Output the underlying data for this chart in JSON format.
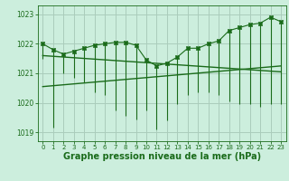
{
  "title": "Graphe pression niveau de la mer (hPa)",
  "xlabel": "Graphe pression niveau de la mer (hPa)",
  "background_color": "#cceedd",
  "grid_color": "#aaccbb",
  "line_color": "#1a6b1a",
  "ylim": [
    1018.7,
    1023.3
  ],
  "xlim": [
    -0.5,
    23.5
  ],
  "yticks": [
    1019,
    1020,
    1021,
    1022,
    1023
  ],
  "xticks": [
    0,
    1,
    2,
    3,
    4,
    5,
    6,
    7,
    8,
    9,
    10,
    11,
    12,
    13,
    14,
    15,
    16,
    17,
    18,
    19,
    20,
    21,
    22,
    23
  ],
  "hours": [
    0,
    1,
    2,
    3,
    4,
    5,
    6,
    7,
    8,
    9,
    10,
    11,
    12,
    13,
    14,
    15,
    16,
    17,
    18,
    19,
    20,
    21,
    22,
    23
  ],
  "high_values": [
    1022.0,
    1021.8,
    1021.65,
    1021.75,
    1021.85,
    1021.95,
    1022.0,
    1022.05,
    1022.05,
    1021.95,
    1021.45,
    1021.25,
    1021.35,
    1021.55,
    1021.85,
    1021.85,
    1022.0,
    1022.1,
    1022.45,
    1022.55,
    1022.65,
    1022.7,
    1022.9,
    1022.75
  ],
  "low_values": [
    1021.5,
    1019.15,
    1021.0,
    1020.85,
    1020.7,
    1020.35,
    1020.25,
    1019.75,
    1019.55,
    1019.45,
    1019.75,
    1019.1,
    1019.4,
    1019.95,
    1020.25,
    1020.35,
    1020.35,
    1020.25,
    1020.05,
    1019.95,
    1019.95,
    1019.85,
    1019.95,
    1019.95
  ],
  "trend_line1_x": [
    0,
    23
  ],
  "trend_line1_y": [
    1021.6,
    1021.05
  ],
  "trend_line2_x": [
    0,
    23
  ],
  "trend_line2_y": [
    1020.55,
    1021.25
  ],
  "fontsize_title": 7,
  "fontsize_ticks": 5
}
